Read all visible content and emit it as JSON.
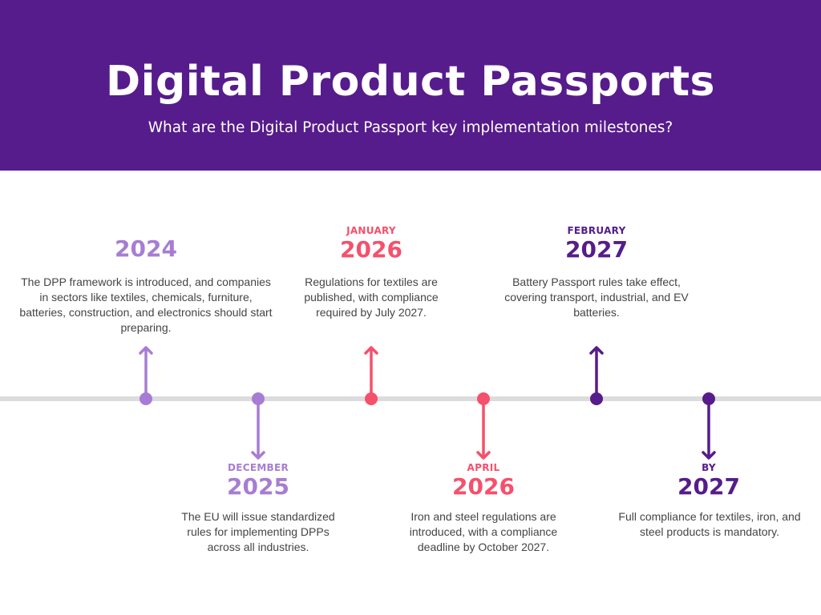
{
  "header": {
    "title": "Digital Product Passports",
    "subtitle": "What are the Digital Product Passport key implementation milestones?"
  },
  "colors": {
    "header_bg": "#561c8b",
    "lavender": "#a77dd3",
    "pink": "#f5506c",
    "dark_purple": "#561c8b",
    "timeline": "#dcdcdc"
  },
  "milestones": [
    {
      "month": "",
      "year": "2024",
      "description": "The DPP framework is introduced, and companies in sectors like textiles, chemicals, furniture, batteries, construction, and electronics should start preparing.",
      "color": "#a77dd3",
      "direction": "up"
    },
    {
      "month": "DECEMBER",
      "year": "2025",
      "description": "The EU will issue standardized rules for implementing DPPs across all industries.",
      "color": "#a77dd3",
      "direction": "down"
    },
    {
      "month": "JANUARY",
      "year": "2026",
      "description": "Regulations for textiles are published, with compliance required by July 2027.",
      "color": "#f5506c",
      "direction": "up"
    },
    {
      "month": "APRIL",
      "year": "2026",
      "description": "Iron and steel regulations are introduced, with a compliance deadline by October 2027.",
      "color": "#f5506c",
      "direction": "down"
    },
    {
      "month": "FEBRUARY",
      "year": "2027",
      "description": "Battery Passport rules take effect, covering transport, industrial, and EV batteries.",
      "color": "#561c8b",
      "direction": "up"
    },
    {
      "month": "BY",
      "year": "2027",
      "description": "Full compliance for textiles, iron, and steel products is mandatory.",
      "color": "#561c8b",
      "direction": "down"
    }
  ]
}
